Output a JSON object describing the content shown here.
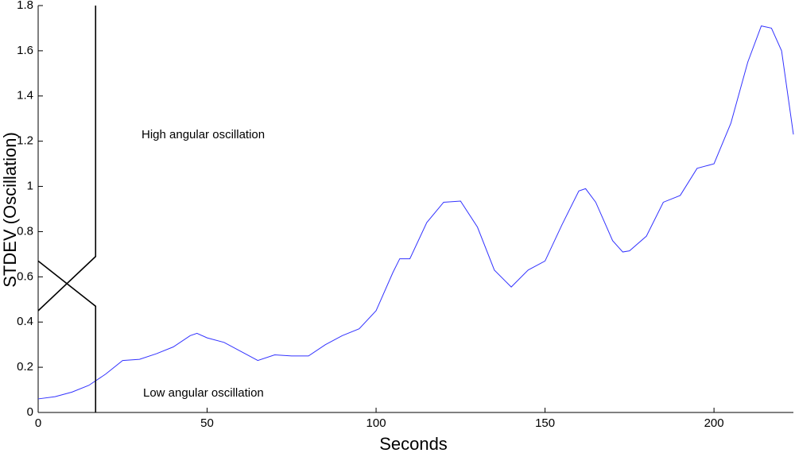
{
  "chart_data": {
    "type": "line",
    "x_label": "Seconds",
    "y_label": "STDEV (Oscillation)",
    "annotations": [
      "High angular oscillation",
      "Low angular oscillation"
    ],
    "xlim": [
      0,
      223.5
    ],
    "ylim": [
      0,
      1.8
    ],
    "xticks": [
      0,
      50,
      100,
      150,
      200
    ],
    "yticks": [
      0,
      0.2,
      0.4,
      0.6,
      0.8,
      1,
      1.2,
      1.4,
      1.6,
      1.8
    ],
    "grid": false,
    "series": [
      {
        "color": "#3333ff",
        "x": [
          0,
          5,
          10,
          15,
          20,
          25,
          30,
          35,
          40,
          45,
          47,
          50,
          55,
          60,
          65,
          70,
          75,
          80,
          85,
          90,
          95,
          100,
          105,
          107,
          110,
          115,
          120,
          125,
          130,
          135,
          140,
          145,
          150,
          155,
          160,
          162,
          165,
          170,
          173,
          175,
          180,
          185,
          190,
          195,
          200,
          205,
          210,
          214,
          217,
          220,
          223.5
        ],
        "values": [
          0.06,
          0.07,
          0.09,
          0.12,
          0.17,
          0.23,
          0.235,
          0.26,
          0.29,
          0.34,
          0.35,
          0.33,
          0.31,
          0.27,
          0.23,
          0.255,
          0.25,
          0.25,
          0.3,
          0.34,
          0.37,
          0.45,
          0.62,
          0.68,
          0.68,
          0.84,
          0.93,
          0.935,
          0.82,
          0.63,
          0.555,
          0.63,
          0.67,
          0.83,
          0.98,
          0.99,
          0.93,
          0.76,
          0.71,
          0.715,
          0.78,
          0.93,
          0.96,
          1.08,
          1.1,
          1.28,
          1.55,
          1.71,
          1.7,
          1.6,
          1.23
        ]
      },
      {
        "color": "#000000",
        "x": [
          0,
          17,
          17
        ],
        "values": [
          0.67,
          0.47,
          0
        ]
      },
      {
        "color": "#000000",
        "x": [
          0,
          17,
          17
        ],
        "values": [
          0.45,
          0.69,
          1.8
        ]
      }
    ]
  }
}
